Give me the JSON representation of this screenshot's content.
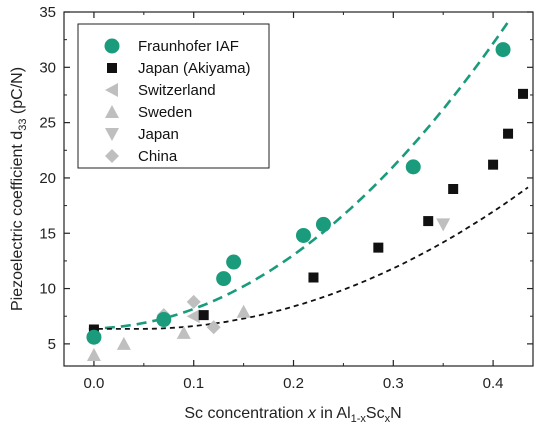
{
  "chart_data": {
    "type": "scatter",
    "xlabel": {
      "prefix": "Sc concentration ",
      "var": "x",
      "mid": " in Al",
      "sub1": "1-x",
      "mid2": "Sc",
      "sub2": "x",
      "suffix": "N"
    },
    "ylabel": {
      "prefix": "Piezoelectric coefficient d",
      "sub": "33",
      "suffix": " (pC/N)"
    },
    "xlim": [
      -0.03,
      0.44
    ],
    "ylim": [
      3,
      35
    ],
    "xticks": [
      "0.0",
      "0.1",
      "0.2",
      "0.3",
      "0.4"
    ],
    "yticks": [
      "5",
      "10",
      "15",
      "20",
      "25",
      "30",
      "35"
    ],
    "legend_position": "top-left",
    "series": [
      {
        "name": "Fraunhofer IAF",
        "marker": "circle",
        "color": "#1a9b7b",
        "x": [
          0.0,
          0.07,
          0.13,
          0.14,
          0.21,
          0.23,
          0.32,
          0.41
        ],
        "y": [
          5.6,
          7.2,
          10.9,
          12.4,
          14.8,
          15.8,
          21.0,
          31.6
        ]
      },
      {
        "name": "Japan (Akiyama)",
        "marker": "square",
        "color": "#111111",
        "x": [
          0.0,
          0.11,
          0.22,
          0.285,
          0.335,
          0.36,
          0.4,
          0.415,
          0.43
        ],
        "y": [
          6.3,
          7.6,
          11.0,
          13.7,
          16.1,
          19.0,
          21.2,
          24.0,
          27.6
        ]
      },
      {
        "name": "Switzerland",
        "marker": "triangle-left",
        "color": "#bfbfbf",
        "x": [
          0.1
        ],
        "y": [
          7.5
        ]
      },
      {
        "name": "Sweden",
        "marker": "triangle-up",
        "color": "#bfbfbf",
        "x": [
          0.0,
          0.03,
          0.09,
          0.15
        ],
        "y": [
          4.0,
          5.0,
          6.0,
          7.9
        ]
      },
      {
        "name": "Japan",
        "marker": "triangle-down",
        "color": "#bfbfbf",
        "x": [
          0.35
        ],
        "y": [
          15.8
        ]
      },
      {
        "name": "China",
        "marker": "diamond",
        "color": "#bfbfbf",
        "x": [
          0.07,
          0.1,
          0.12
        ],
        "y": [
          7.6,
          8.8,
          6.5
        ]
      }
    ],
    "fits": [
      {
        "color": "#1a9b7b",
        "dash": "long",
        "a": 6.4,
        "b": 2,
        "c": 156
      },
      {
        "color": "#111111",
        "dash": "short",
        "a": 6.35,
        "b": 0.05,
        "c": 84,
        "p": 0.045
      }
    ]
  }
}
